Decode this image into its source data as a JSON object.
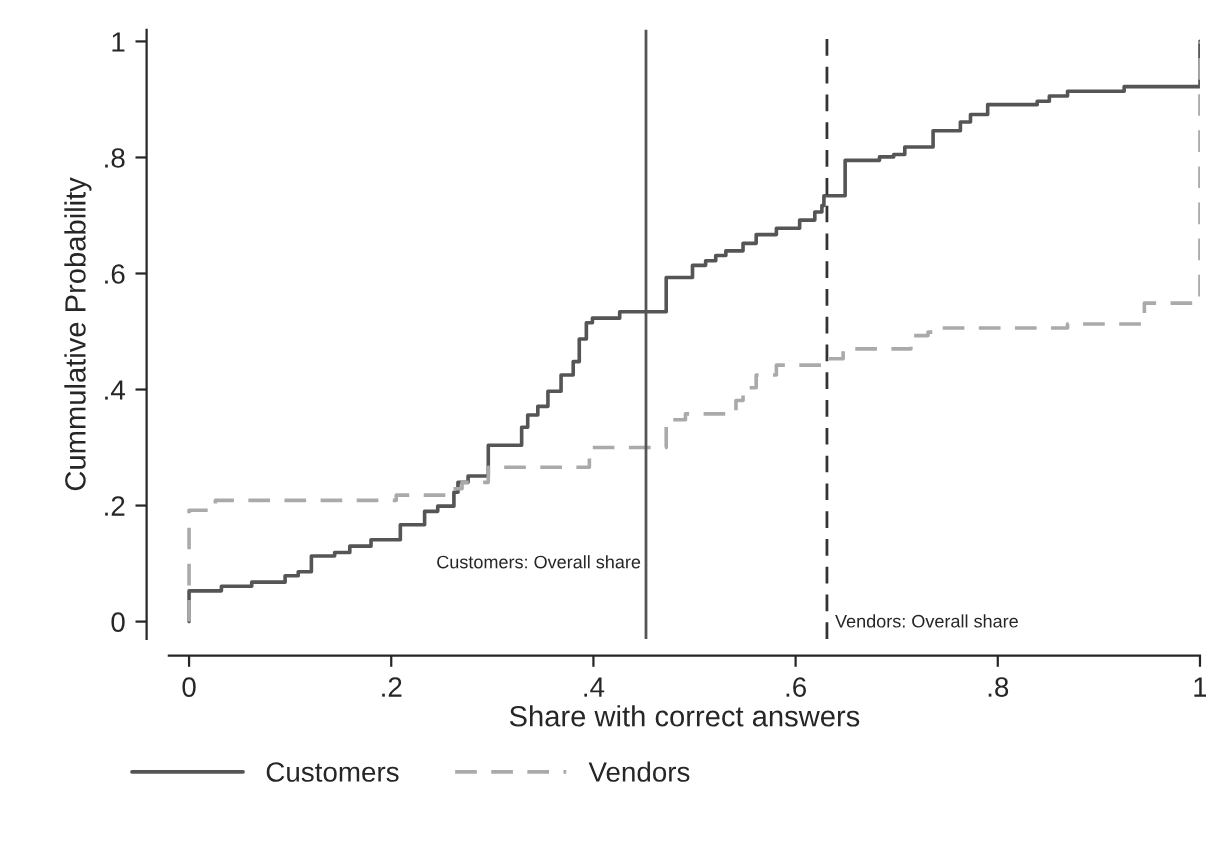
{
  "chart_data": {
    "type": "step",
    "xlabel": "Share with correct answers",
    "ylabel": "Cummulative Probability",
    "xlim": [
      -0.02,
      1.0
    ],
    "ylim": [
      -0.03,
      1.02
    ],
    "xticks": [
      0,
      {
        "value": 0.2,
        "label": ".2"
      },
      {
        "value": 0.4,
        "label": ".4"
      },
      {
        "value": 0.6,
        "label": ".6"
      },
      {
        "value": 0.8,
        "label": ".8"
      },
      1
    ],
    "yticks": [
      0,
      {
        "value": 0.2,
        "label": ".2"
      },
      {
        "value": 0.4,
        "label": ".4"
      },
      {
        "value": 0.6,
        "label": ".6"
      },
      {
        "value": 0.8,
        "label": ".8"
      },
      1
    ],
    "grid": false,
    "legend": "bottom",
    "series": [
      {
        "name": "Customers",
        "color": "#555555",
        "line_style": "solid",
        "x": [
          0,
          0,
          0.032,
          0.062,
          0.095,
          0.108,
          0.121,
          0.144,
          0.159,
          0.18,
          0.209,
          0.233,
          0.246,
          0.262,
          0.266,
          0.276,
          0.296,
          0.329,
          0.335,
          0.345,
          0.355,
          0.368,
          0.38,
          0.386,
          0.393,
          0.399,
          0.426,
          0.472,
          0.498,
          0.511,
          0.521,
          0.531,
          0.548,
          0.561,
          0.581,
          0.604,
          0.619,
          0.626,
          0.628,
          0.649,
          0.683,
          0.697,
          0.708,
          0.736,
          0.763,
          0.773,
          0.79,
          0.839,
          0.851,
          0.869,
          0.925,
          1.0,
          1.0
        ],
        "values": [
          0,
          0.053,
          0.061,
          0.068,
          0.079,
          0.086,
          0.113,
          0.119,
          0.13,
          0.141,
          0.167,
          0.19,
          0.199,
          0.223,
          0.24,
          0.251,
          0.304,
          0.335,
          0.356,
          0.371,
          0.397,
          0.425,
          0.448,
          0.487,
          0.515,
          0.523,
          0.534,
          0.593,
          0.614,
          0.622,
          0.631,
          0.639,
          0.652,
          0.667,
          0.678,
          0.692,
          0.706,
          0.717,
          0.734,
          0.795,
          0.801,
          0.805,
          0.818,
          0.846,
          0.861,
          0.874,
          0.891,
          0.897,
          0.906,
          0.914,
          0.922,
          0.922,
          1.0
        ]
      },
      {
        "name": "Vendors",
        "color": "#aaaaaa",
        "line_style": "dashed",
        "x": [
          0,
          0,
          0.026,
          0.205,
          0.261,
          0.27,
          0.296,
          0.396,
          0.472,
          0.491,
          0.541,
          0.548,
          0.561,
          0.581,
          0.631,
          0.647,
          0.714,
          0.731,
          0.741,
          0.869,
          0.945,
          1.0,
          1.0
        ],
        "values": [
          0,
          0.192,
          0.209,
          0.218,
          0.229,
          0.24,
          0.266,
          0.3,
          0.348,
          0.358,
          0.381,
          0.403,
          0.425,
          0.442,
          0.453,
          0.47,
          0.493,
          0.499,
          0.506,
          0.513,
          0.549,
          0.549,
          1.0
        ]
      }
    ],
    "ref_lines": [
      {
        "axis": "x",
        "value": 0.452,
        "label": "Customers: Overall share",
        "color": "#555555",
        "line_style": "solid"
      },
      {
        "axis": "x",
        "value": 0.631,
        "label": "Vendors: Overall share",
        "color": "#333333",
        "line_style": "dashed"
      }
    ]
  }
}
